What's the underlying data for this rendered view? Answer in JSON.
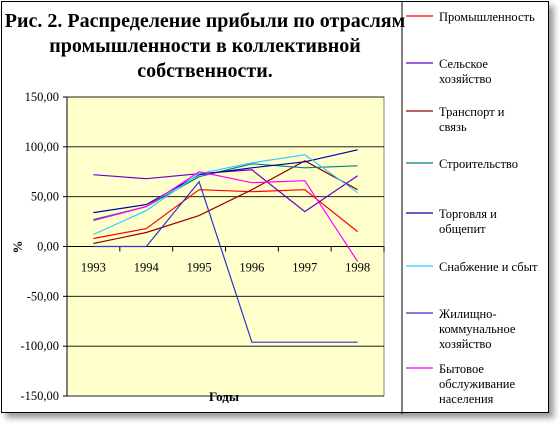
{
  "chart_data": {
    "type": "line",
    "title_lines": [
      "Рис. 2. Распределение прибыли по отраслям",
      "промышленности в коллективной",
      "собственности."
    ],
    "xlabel": "Годы",
    "ylabel": "%",
    "categories": [
      "1993",
      "1994",
      "1995",
      "1996",
      "1997",
      "1998"
    ],
    "y_tick_labels": [
      "150,00",
      "100,00",
      "50,00",
      "0,00",
      "-50,00",
      "-100,00",
      "-150,00"
    ],
    "y_ticks": [
      150,
      100,
      50,
      0,
      -50,
      -100,
      -150
    ],
    "ylim": [
      -150,
      150
    ],
    "grid": "horizontal",
    "plot_background": "#ffffcc",
    "legend_position": "right",
    "series": [
      {
        "name": "Промышленность",
        "color": "#ff0000",
        "values": [
          8,
          18,
          57,
          55,
          57,
          15
        ]
      },
      {
        "name": "Сельское хозяйство",
        "color": "#6600cc",
        "values": [
          72,
          68,
          73,
          77,
          35,
          71
        ]
      },
      {
        "name": "Транспорт и связь",
        "color": "#990000",
        "values": [
          3,
          14,
          31,
          57,
          86,
          57
        ]
      },
      {
        "name": "Строительство",
        "color": "#008080",
        "values": [
          27,
          40,
          70,
          83,
          79,
          81
        ]
      },
      {
        "name": "Торговля и общепит",
        "color": "#000099",
        "values": [
          34,
          42,
          72,
          79,
          85,
          97
        ]
      },
      {
        "name": "Снабжение и сбыт",
        "color": "#33ccff",
        "values": [
          12,
          36,
          73,
          84,
          92,
          54
        ]
      },
      {
        "name": "Жилищно-коммунальное хозяйство",
        "color": "#3333cc",
        "values": [
          0,
          0,
          65,
          -96,
          -96,
          -96
        ]
      },
      {
        "name": "Бытовое обслуживание населения",
        "color": "#ff00ff",
        "values": [
          26,
          40,
          75,
          64,
          66,
          -15
        ]
      }
    ],
    "legend_lines": [
      [
        "Промышленность"
      ],
      [
        "Сельское",
        "хозяйство"
      ],
      [
        "Транспорт и",
        "связь"
      ],
      [
        "Строительство"
      ],
      [
        "Торговля и",
        "общепит"
      ],
      [
        "Снабжение и сбыт"
      ],
      [
        "Жилищно-",
        "коммунальное",
        "хозяйство"
      ],
      [
        "Бытовое",
        "обслуживание",
        "населения"
      ]
    ]
  }
}
